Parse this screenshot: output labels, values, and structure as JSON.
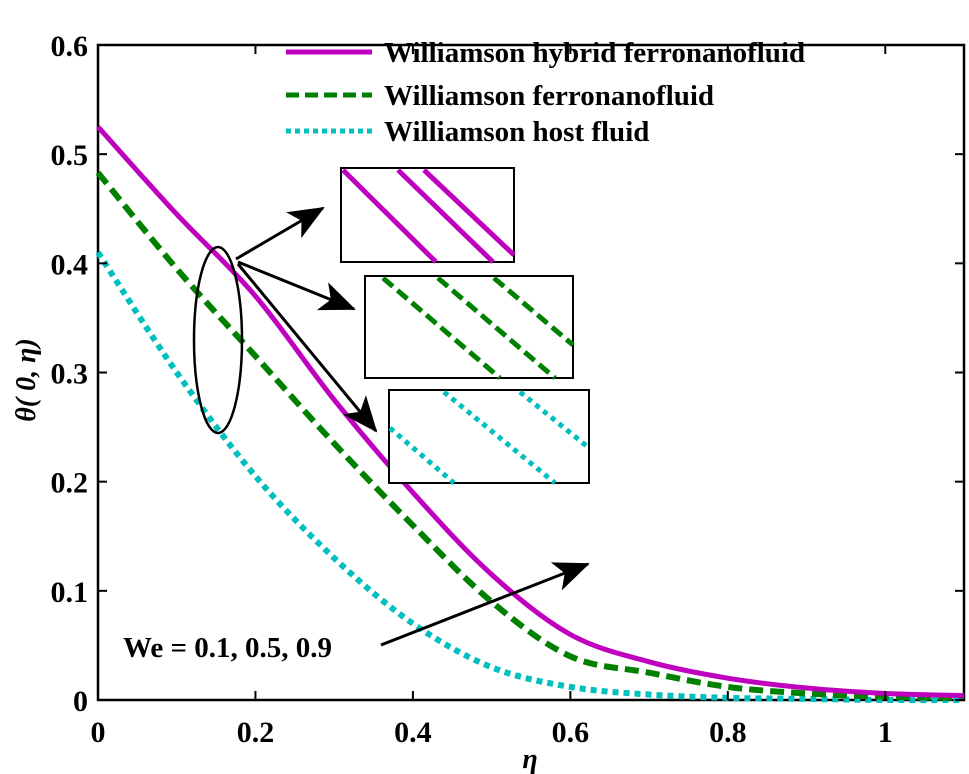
{
  "chart_data": {
    "type": "line",
    "title": "",
    "xlabel": "η",
    "ylabel": "θ( 0, η)",
    "xlim": [
      0,
      1.1
    ],
    "ylim": [
      0,
      0.6
    ],
    "xticks": [
      0,
      0.2,
      0.4,
      0.6,
      0.8,
      1
    ],
    "xtick_labels": [
      "0",
      "0.2",
      "0.4",
      "0.6",
      "0.8",
      "1"
    ],
    "yticks": [
      0,
      0.1,
      0.2,
      0.3,
      0.4,
      0.5,
      0.6
    ],
    "ytick_labels": [
      "0",
      "0.1",
      "0.2",
      "0.3",
      "0.4",
      "0.5",
      "0.6"
    ],
    "grid": false,
    "legend_position": "upper right",
    "x": [
      0,
      0.1,
      0.2,
      0.3,
      0.4,
      0.5,
      0.6,
      0.7,
      0.8,
      0.9,
      1.0,
      1.1
    ],
    "series": [
      {
        "name": "Williamson hybrid ferronanofluid",
        "color": "#bf00bf",
        "style": "solid",
        "values": [
          0.525,
          0.445,
          0.37,
          0.275,
          0.19,
          0.115,
          0.06,
          0.035,
          0.02,
          0.011,
          0.006,
          0.004
        ]
      },
      {
        "name": "Williamson ferronanofluid",
        "color": "#008000",
        "style": "dashed",
        "values": [
          0.483,
          0.395,
          0.315,
          0.235,
          0.16,
          0.09,
          0.04,
          0.025,
          0.012,
          0.006,
          0.003,
          0.002
        ]
      },
      {
        "name": "Williamson host fluid",
        "color": "#00bfbf",
        "style": "dotted",
        "values": [
          0.41,
          0.3,
          0.205,
          0.13,
          0.07,
          0.03,
          0.012,
          0.005,
          0.002,
          0.001,
          0.0,
          0.0
        ]
      }
    ],
    "annotations": [
      {
        "text": "We = 0.1, 0.5, 0.9",
        "note": "arrow pointing toward increasing θ direction near η≈0.6"
      },
      {
        "text": "",
        "note": "ellipse at η≈0.15 with three arrows to zoomed insets showing three lines per fluid"
      }
    ]
  },
  "legend": {
    "items": [
      {
        "label": "Williamson hybrid ferronanofluid"
      },
      {
        "label": "Williamson ferronanofluid"
      },
      {
        "label": "Williamson host fluid"
      }
    ]
  },
  "axes": {
    "xlabel": "η",
    "ylabel": "θ( 0, η)"
  },
  "annotation": {
    "we_label": "We = 0.1, 0.5, 0.9"
  }
}
